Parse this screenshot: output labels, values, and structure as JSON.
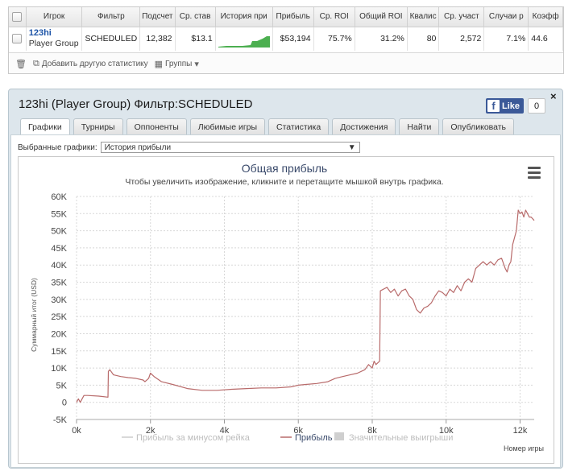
{
  "stats_table": {
    "headers": [
      "Игрок",
      "Фильтр",
      "Подсчет",
      "Ср. став",
      "История при",
      "Прибыль",
      "Ср. ROI",
      "Общий ROI",
      "Квалис",
      "Ср. участ",
      "Случаи р",
      "Коэфф"
    ],
    "row": {
      "player_name": "123hi",
      "player_group": "Player Group",
      "filter": "SCHEDULED",
      "count": "12,382",
      "avg_stake": "$13.1",
      "profit": "$53,194",
      "avg_roi": "75.7%",
      "total_roi": "31.2%",
      "qualis": "80",
      "avg_participants": "2,572",
      "cases": "7.1%",
      "coef": "44.6"
    },
    "footer": {
      "add_stat_label": "Добавить другую статистику",
      "groups_label": "Группы"
    }
  },
  "panel": {
    "title": "123hi (Player Group) Фильтр:SCHEDULED",
    "like_label": "Like",
    "like_count": "0",
    "close_glyph": "×",
    "tabs": [
      "Графики",
      "Турниры",
      "Оппоненты",
      "Любимые игры",
      "Статистика",
      "Достижения",
      "Найти",
      "Опубликовать"
    ],
    "graph_select_label": "Выбранные графики:",
    "graph_select_value": "История прибыли"
  },
  "chart_data": {
    "type": "line",
    "title": "Общая прибыль",
    "subtitle": "Чтобы увеличить изображение, кликните и перетащите мышкой внутрь графика.",
    "xlabel": "Номер игры",
    "ylabel": "Суммарный итог (USD)",
    "xlim": [
      0,
      12382
    ],
    "ylim": [
      -5000,
      60000
    ],
    "x_ticks": [
      "0k",
      "2k",
      "4k",
      "6k",
      "8k",
      "10k",
      "12k"
    ],
    "y_ticks": [
      "-5K",
      "0",
      "5K",
      "10K",
      "15K",
      "20K",
      "25K",
      "30K",
      "35K",
      "40K",
      "45K",
      "50K",
      "55K",
      "60K"
    ],
    "line_color": "#b86a6a",
    "legend": [
      {
        "name": "Прибыль за минусом рейка",
        "active": false
      },
      {
        "name": "Прибыль",
        "active": true
      },
      {
        "name": "Значительные выигрыши",
        "active": false
      }
    ],
    "legend_placement": "bottom",
    "series": [
      {
        "name": "Прибыль",
        "x": [
          0,
          50,
          100,
          200,
          280,
          300,
          600,
          850,
          860,
          900,
          1000,
          1200,
          1400,
          1600,
          1800,
          1850,
          1950,
          2000,
          2100,
          2300,
          2600,
          3000,
          3400,
          3800,
          4200,
          4600,
          5000,
          5400,
          5800,
          6000,
          6200,
          6500,
          6800,
          7000,
          7200,
          7400,
          7600,
          7800,
          7900,
          8000,
          8050,
          8100,
          8150,
          8200,
          8220,
          8400,
          8500,
          8600,
          8700,
          8800,
          8900,
          9000,
          9100,
          9200,
          9300,
          9400,
          9500,
          9600,
          9700,
          9800,
          9900,
          10000,
          10100,
          10200,
          10300,
          10400,
          10500,
          10600,
          10700,
          10800,
          10900,
          11000,
          11100,
          11200,
          11300,
          11400,
          11500,
          11600,
          11650,
          11700,
          11750,
          11800,
          11850,
          11900,
          11950,
          12000,
          12050,
          12100,
          12150,
          12200,
          12250,
          12300,
          12382
        ],
        "y": [
          0,
          1000,
          0,
          2000,
          2000,
          2000,
          1800,
          1500,
          9000,
          9500,
          8000,
          7500,
          7200,
          7000,
          6500,
          6000,
          7000,
          8500,
          7500,
          6000,
          5200,
          4000,
          3500,
          3500,
          3800,
          4000,
          4200,
          4200,
          4500,
          5000,
          5200,
          5500,
          6000,
          7000,
          7500,
          8000,
          8500,
          9500,
          11000,
          10000,
          12000,
          11000,
          11500,
          12000,
          32500,
          33500,
          32000,
          33000,
          31000,
          32500,
          33000,
          31000,
          30000,
          27000,
          26000,
          27500,
          28000,
          29000,
          31000,
          32500,
          32000,
          31000,
          33000,
          32000,
          34000,
          32500,
          35000,
          36000,
          35000,
          39000,
          40000,
          41000,
          40000,
          41000,
          40000,
          41500,
          42000,
          39000,
          38000,
          40000,
          41000,
          46000,
          48000,
          50000,
          56000,
          55000,
          55500,
          54000,
          56000,
          55000,
          54000,
          54000,
          53000
        ]
      }
    ]
  }
}
